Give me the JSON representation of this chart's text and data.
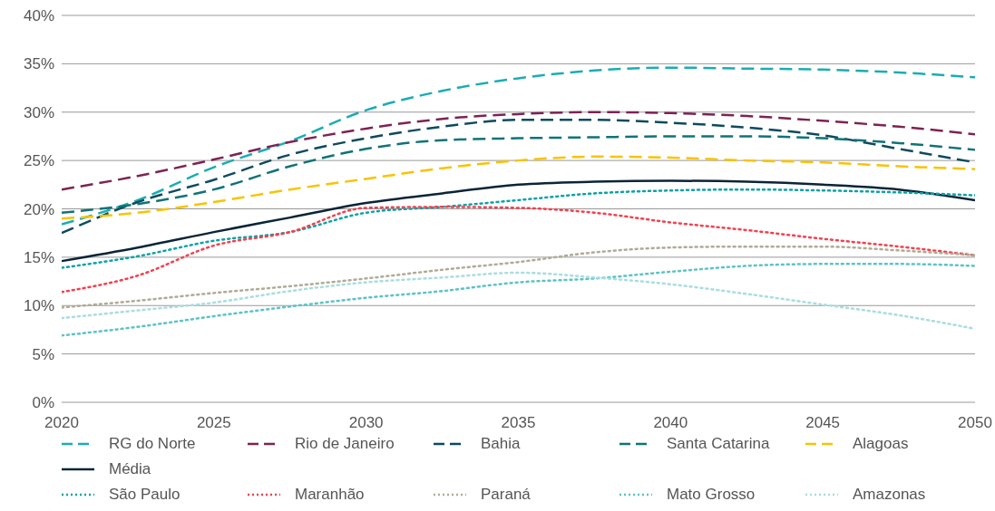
{
  "chart_data": {
    "type": "line",
    "x": [
      2020,
      2022.5,
      2025,
      2027.5,
      2030,
      2032.5,
      2035,
      2037.5,
      2040,
      2042.5,
      2045,
      2047.5,
      2050
    ],
    "xlim": [
      2020,
      2050
    ],
    "xticks": [
      2020,
      2025,
      2030,
      2035,
      2040,
      2045,
      2050
    ],
    "ylim": [
      0,
      40
    ],
    "yticks": [
      {
        "value": 0,
        "label": "0%"
      },
      {
        "value": 5,
        "label": "5%"
      },
      {
        "value": 10,
        "label": "10%"
      },
      {
        "value": 15,
        "label": "15%"
      },
      {
        "value": 20,
        "label": "20%"
      },
      {
        "value": 25,
        "label": "25%"
      },
      {
        "value": 30,
        "label": "30%"
      },
      {
        "value": 35,
        "label": "35%"
      },
      {
        "value": 40,
        "label": "40%"
      }
    ],
    "grid": "y",
    "legend": "bottom",
    "marker": "none",
    "series": [
      {
        "name": "RG do Norte",
        "color": "#1aadb4",
        "line_style": "dashed",
        "values": [
          18.4,
          20.9,
          24.3,
          27.0,
          30.2,
          32.2,
          33.5,
          34.3,
          34.6,
          34.5,
          34.4,
          34.1,
          33.6
        ]
      },
      {
        "name": "Rio de Janeiro",
        "color": "#7d2352",
        "line_style": "dashed",
        "values": [
          22.0,
          23.4,
          25.1,
          26.9,
          28.3,
          29.3,
          29.8,
          30.0,
          29.9,
          29.6,
          29.1,
          28.5,
          27.7
        ]
      },
      {
        "name": "Bahia",
        "color": "#0d4a5e",
        "line_style": "dashed",
        "values": [
          17.5,
          20.7,
          23.0,
          25.6,
          27.3,
          28.5,
          29.2,
          29.2,
          28.9,
          28.4,
          27.6,
          26.2,
          24.8
        ]
      },
      {
        "name": "Santa Catarina",
        "color": "#0f7378",
        "line_style": "dashed",
        "values": [
          19.6,
          20.5,
          22.0,
          24.4,
          26.2,
          27.1,
          27.3,
          27.4,
          27.5,
          27.5,
          27.3,
          26.8,
          26.1
        ]
      },
      {
        "name": "Alagoas",
        "color": "#f9c300",
        "line_style": "dashed",
        "values": [
          19.0,
          19.6,
          20.7,
          22.0,
          23.1,
          24.2,
          25.0,
          25.4,
          25.3,
          25.0,
          24.8,
          24.4,
          24.1
        ]
      },
      {
        "name": "Média",
        "color": "#0b2437",
        "line_style": "solid",
        "values": [
          14.6,
          16.0,
          17.6,
          19.1,
          20.6,
          21.6,
          22.5,
          22.8,
          22.9,
          22.8,
          22.5,
          22.0,
          20.9
        ]
      },
      {
        "name": "São Paulo",
        "color": "#0aa3a8",
        "line_style": "dotted",
        "values": [
          13.9,
          15.1,
          16.7,
          17.6,
          19.6,
          20.2,
          20.9,
          21.6,
          21.9,
          22.0,
          21.9,
          21.7,
          21.4
        ]
      },
      {
        "name": "Maranhão",
        "color": "#f2414f",
        "line_style": "dotted",
        "values": [
          11.4,
          13.1,
          16.2,
          17.6,
          20.1,
          20.2,
          20.1,
          19.6,
          18.6,
          17.8,
          16.9,
          16.1,
          15.2
        ]
      },
      {
        "name": "Paraná",
        "color": "#b0ab95",
        "line_style": "dotted",
        "values": [
          9.8,
          10.5,
          11.3,
          12.0,
          12.8,
          13.7,
          14.5,
          15.5,
          16.0,
          16.1,
          16.1,
          15.7,
          15.2
        ]
      },
      {
        "name": "Mato Grosso",
        "color": "#5cc3c8",
        "line_style": "dotted",
        "values": [
          6.9,
          7.8,
          8.9,
          9.9,
          10.8,
          11.5,
          12.4,
          12.8,
          13.5,
          14.1,
          14.3,
          14.3,
          14.1
        ]
      },
      {
        "name": "Amazonas",
        "color": "#a9dde0",
        "line_style": "dotted",
        "values": [
          8.7,
          9.5,
          10.3,
          11.5,
          12.4,
          12.9,
          13.4,
          12.9,
          12.2,
          11.2,
          10.1,
          9.0,
          7.6
        ]
      }
    ]
  }
}
